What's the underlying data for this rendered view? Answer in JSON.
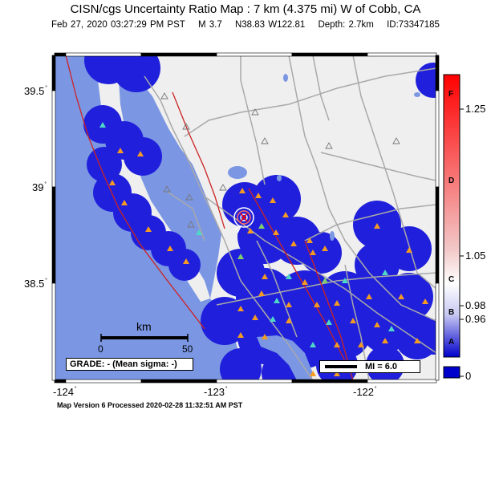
{
  "header": {
    "title": "CISN/cgs Uncertainty Ratio Map : 7 km (4.375 mi) W of Cobb, CA",
    "date": "Feb 27, 2020 03:27:29 PM PST",
    "magnitude": "M 3.7",
    "location": "N38.83 W122.81",
    "depth": "Depth: 2.7km",
    "event_id": "ID:73347185"
  },
  "axes": {
    "lat_labels": [
      "39.5",
      "39",
      "38.5"
    ],
    "lon_labels": [
      "-124",
      "-123",
      "-122"
    ],
    "degree_symbol": "˚"
  },
  "scale_bar": {
    "unit": "km",
    "start": "0",
    "end": "50"
  },
  "grade_box": {
    "text": "GRADE: - (Mean sigma: -)"
  },
  "mi_legend": {
    "text": "MI = 6.0"
  },
  "colorbar": {
    "value_labels": [
      "1.25",
      "1.05",
      "0.98",
      "0.96",
      "0"
    ],
    "grade_letters": [
      "F",
      "D",
      "C",
      "B",
      "A"
    ],
    "colors": {
      "top": "#ff0000",
      "upper_mid": "#f2c8c8",
      "middle": "#ffffff",
      "lower_mid": "#c8c8f2",
      "bottom": "#0000cc"
    }
  },
  "colors": {
    "ocean": "#7b97e4",
    "land": "#efefef",
    "coverage": "#2020dc",
    "roads": "#a9a9a9",
    "faults": "#cc2222",
    "station_orange": "#f59a22",
    "station_cyan": "#4fd8c8",
    "station_green": "#7fd06a"
  },
  "footer": {
    "text": "Map Version 6 Processed 2020-02-28 11:32:51 AM PST"
  }
}
